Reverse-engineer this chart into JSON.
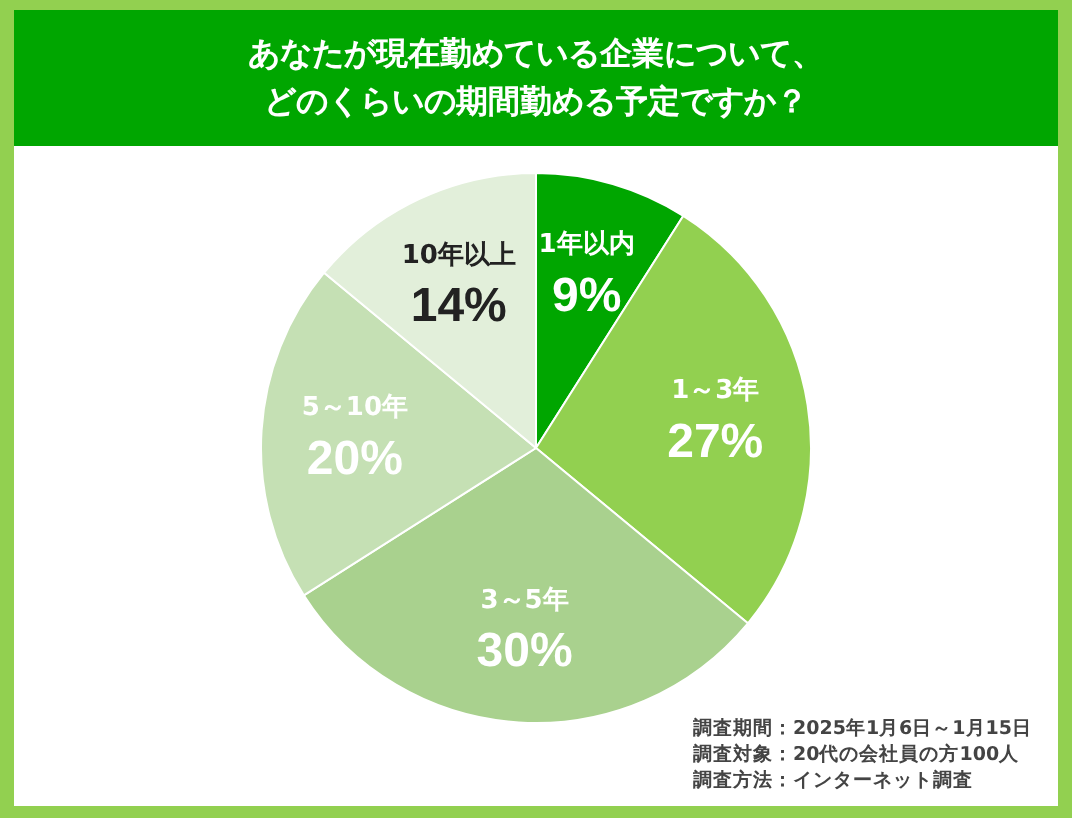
{
  "chart_data": {
    "type": "pie",
    "title": "あなたが現在勤めている企業について、どのくらいの期間勤める予定ですか？",
    "categories": [
      "1年以内",
      "1～3年",
      "3～5年",
      "5～10年",
      "10年以上"
    ],
    "values": [
      9,
      27,
      30,
      20,
      14
    ],
    "colors": [
      "#00a600",
      "#92d050",
      "#a9d18e",
      "#c5e0b4",
      "#e2efda"
    ],
    "value_labels": [
      "9%",
      "27%",
      "30%",
      "20%",
      "14%"
    ],
    "legend": false,
    "annotations": [
      "調査期間：2025年1月6日～1月15日",
      "調査対象：20代の会社員の方100人",
      "調査方法：インターネット調査"
    ]
  }
}
